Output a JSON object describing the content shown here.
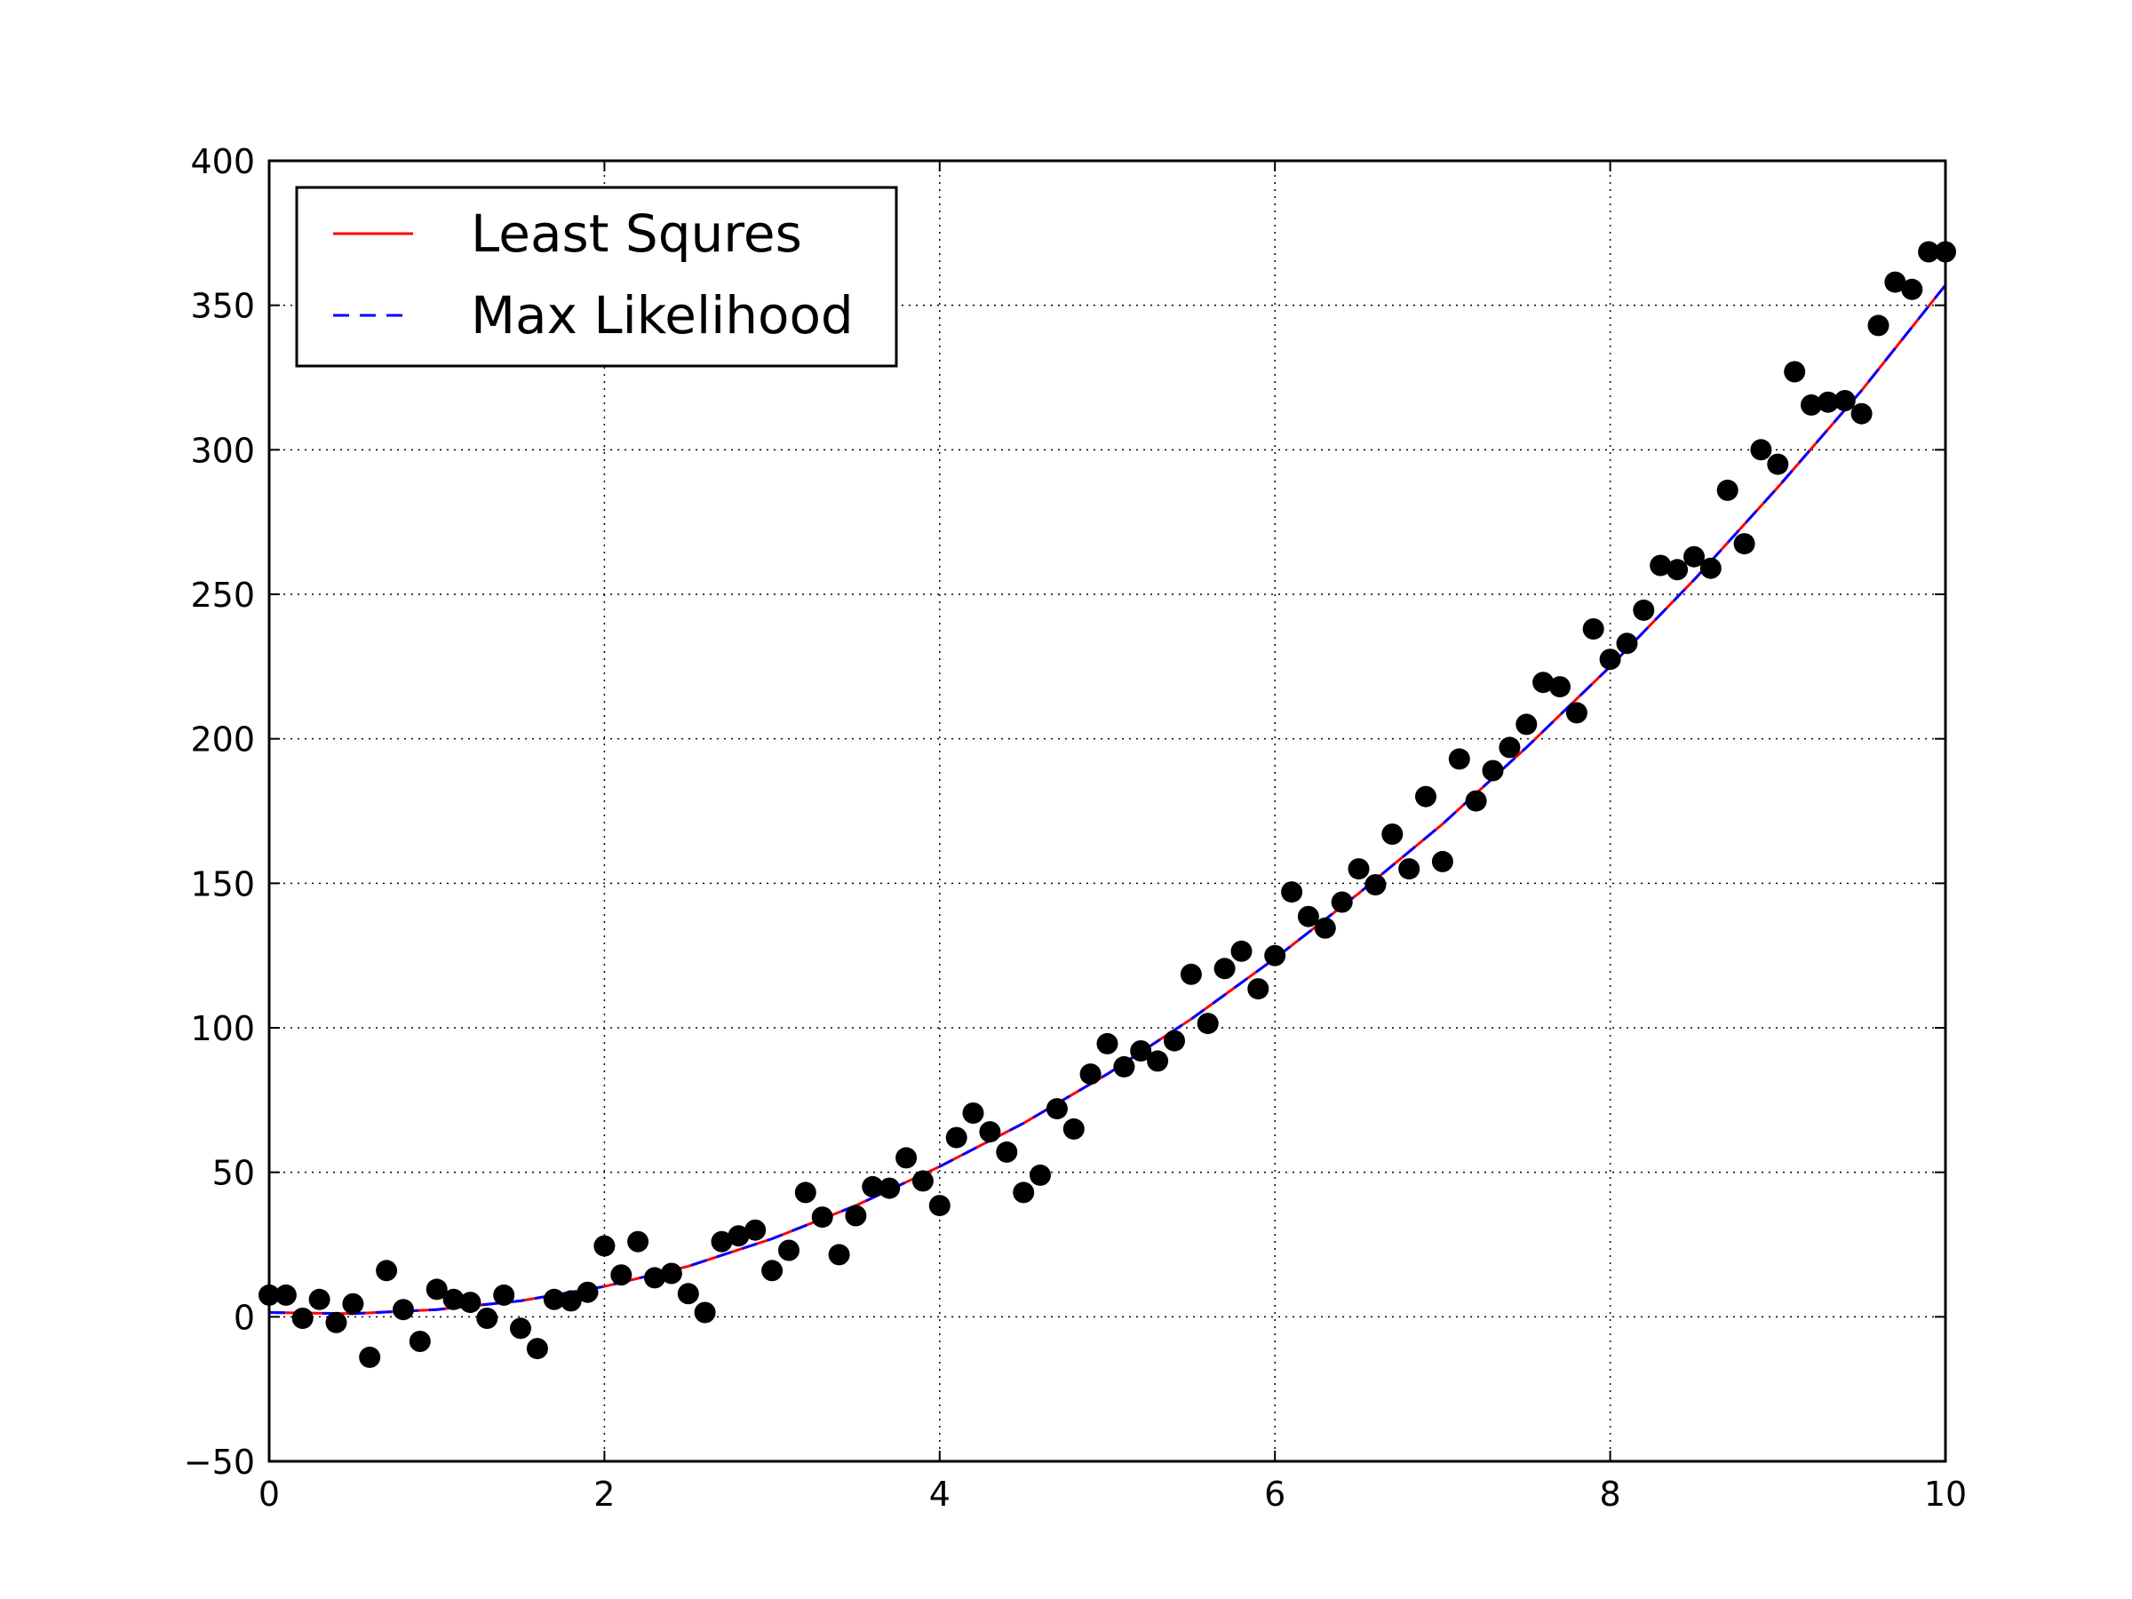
{
  "chart_data": {
    "type": "scatter",
    "title": "",
    "xlabel": "",
    "ylabel": "",
    "xlim": [
      0,
      10
    ],
    "ylim": [
      -50,
      400
    ],
    "xticks": [
      0,
      2,
      4,
      6,
      8,
      10
    ],
    "yticks": [
      -50,
      0,
      50,
      100,
      150,
      200,
      250,
      300,
      350,
      400
    ],
    "xtick_labels": [
      "0",
      "2",
      "4",
      "6",
      "8",
      "10"
    ],
    "ytick_labels": [
      "−50",
      "0",
      "50",
      "100",
      "150",
      "200",
      "250",
      "300",
      "350",
      "400"
    ],
    "grid": true,
    "legend_position": "top-left",
    "series": [
      {
        "name": "Least Squres",
        "kind": "line",
        "style": "solid",
        "color": "#ff0000",
        "x": [
          0,
          0.5,
          1,
          1.5,
          2,
          2.5,
          3,
          3.5,
          4,
          4.5,
          5,
          5.5,
          6,
          6.5,
          7,
          7.5,
          8,
          8.5,
          9,
          9.5,
          10
        ],
        "y": [
          1.5,
          1.1,
          2.5,
          5.5,
          10.5,
          17.5,
          27,
          38.5,
          52,
          67,
          84,
          103,
          124,
          146.5,
          170.5,
          197,
          225,
          255,
          287,
          320.5,
          357
        ]
      },
      {
        "name": "Max Likelihood",
        "kind": "line",
        "style": "dashed",
        "color": "#0000ff",
        "x": [
          0,
          0.5,
          1,
          1.5,
          2,
          2.5,
          3,
          3.5,
          4,
          4.5,
          5,
          5.5,
          6,
          6.5,
          7,
          7.5,
          8,
          8.5,
          9,
          9.5,
          10
        ],
        "y": [
          1.5,
          1.1,
          2.5,
          5.5,
          10.5,
          17.5,
          27,
          38.5,
          52,
          67,
          84,
          103,
          124,
          146.5,
          170.5,
          197,
          225,
          255,
          287,
          320.5,
          357
        ]
      },
      {
        "kind": "scatter",
        "color": "#000000",
        "x": [
          0,
          0.1,
          0.2,
          0.3,
          0.4,
          0.5,
          0.6,
          0.7,
          0.8,
          0.9,
          1.0,
          1.1,
          1.2,
          1.3,
          1.4,
          1.5,
          1.6,
          1.7,
          1.8,
          1.9,
          2.0,
          2.1,
          2.2,
          2.3,
          2.4,
          2.5,
          2.6,
          2.7,
          2.8,
          2.9,
          3.0,
          3.1,
          3.2,
          3.3,
          3.4,
          3.5,
          3.6,
          3.7,
          3.8,
          3.9,
          4.0,
          4.1,
          4.2,
          4.3,
          4.4,
          4.5,
          4.6,
          4.7,
          4.8,
          4.9,
          5.0,
          5.1,
          5.2,
          5.3,
          5.4,
          5.5,
          5.6,
          5.7,
          5.8,
          5.9,
          6.0,
          6.1,
          6.2,
          6.3,
          6.4,
          6.5,
          6.6,
          6.7,
          6.8,
          6.9,
          7.0,
          7.1,
          7.2,
          7.3,
          7.4,
          7.5,
          7.6,
          7.7,
          7.8,
          7.9,
          8.0,
          8.1,
          8.2,
          8.3,
          8.4,
          8.5,
          8.6,
          8.7,
          8.8,
          8.9,
          9.0,
          9.1,
          9.2,
          9.3,
          9.4,
          9.5,
          9.6,
          9.7,
          9.8,
          9.9,
          10.0
        ],
        "y": [
          7.5,
          7.5,
          -0.5,
          6,
          -2,
          4.5,
          -14,
          16,
          2.5,
          -8.5,
          9.5,
          6,
          5,
          -0.5,
          7.5,
          -4,
          -11,
          6,
          5.5,
          8.5,
          24.5,
          14.5,
          26,
          13.5,
          15,
          8,
          1.5,
          26,
          28,
          30,
          16,
          23,
          43,
          34.5,
          21.5,
          35,
          45,
          44.5,
          55,
          47,
          38.5,
          62,
          70.5,
          64,
          57,
          43,
          49,
          72,
          65,
          84,
          94.5,
          86.5,
          92,
          88.5,
          95.5,
          118.5,
          101.5,
          120.5,
          126.5,
          113.5,
          125,
          147,
          138.5,
          134.5,
          143.5,
          155,
          149.5,
          167,
          155,
          180,
          157.5,
          193,
          178.5,
          189,
          197,
          205,
          219.5,
          218,
          209,
          238,
          227.5,
          233,
          244.5,
          260,
          258.5,
          263,
          259,
          286,
          267.5,
          300,
          295,
          327,
          315.5,
          316.5,
          317,
          312.5,
          343,
          358,
          355.5,
          368.5,
          368.5
        ]
      }
    ]
  }
}
